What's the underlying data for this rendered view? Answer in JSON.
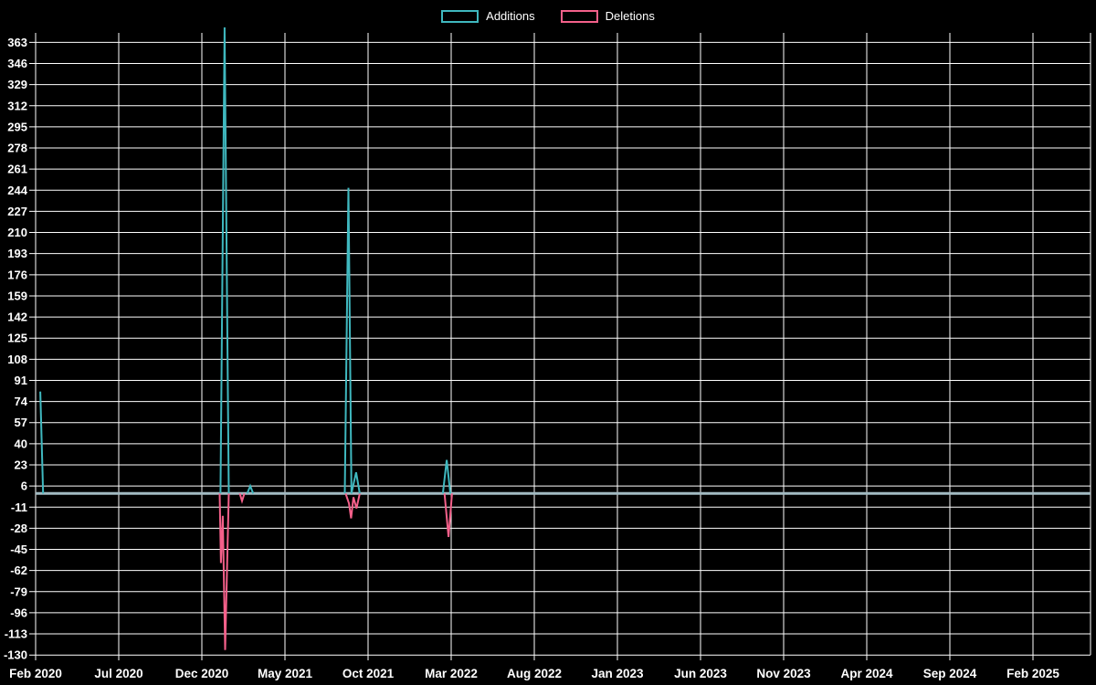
{
  "chart_data": {
    "type": "line",
    "title": "",
    "background_color": "#000000",
    "grid": true,
    "grid_color": "#ffffff",
    "zero_line_color": "#a2bac2",
    "legend_position": "top-center",
    "x_tick_labels": [
      "Feb 2020",
      "Jul 2020",
      "Dec 2020",
      "May 2021",
      "Oct 2021",
      "Mar 2022",
      "Aug 2022",
      "Jan 2023",
      "Jun 2023",
      "Nov 2023",
      "Apr 2024",
      "Sep 2024",
      "Feb 2025"
    ],
    "x_tick_interval_months": 5,
    "y_tick_labels": [
      363,
      346,
      329,
      312,
      295,
      278,
      261,
      244,
      227,
      210,
      193,
      176,
      159,
      142,
      125,
      108,
      91,
      74,
      57,
      40,
      23,
      6,
      -11,
      -28,
      -45,
      -62,
      -79,
      -96,
      -113,
      -130
    ],
    "ylim": [
      -130,
      375
    ],
    "x_unit": "months since Feb 2020",
    "series": [
      {
        "name": "Additions",
        "color": "#3fb8bf",
        "points": [
          [
            0.28,
            82
          ],
          [
            0.45,
            0
          ],
          [
            11.12,
            0
          ],
          [
            11.37,
            375
          ],
          [
            11.62,
            0
          ],
          [
            12.73,
            0
          ],
          [
            12.91,
            6
          ],
          [
            13.09,
            0
          ],
          [
            18.6,
            0
          ],
          [
            18.82,
            246
          ],
          [
            19.0,
            0
          ],
          [
            19.28,
            17
          ],
          [
            19.5,
            0
          ],
          [
            24.5,
            0
          ],
          [
            24.73,
            27
          ],
          [
            24.95,
            0
          ],
          [
            63.4,
            0
          ]
        ]
      },
      {
        "name": "Deletions",
        "color": "#f4608a",
        "points": [
          [
            0.1,
            0
          ],
          [
            11.07,
            0
          ],
          [
            11.15,
            -56
          ],
          [
            11.26,
            -18
          ],
          [
            11.4,
            -126
          ],
          [
            11.62,
            0
          ],
          [
            12.28,
            0
          ],
          [
            12.42,
            -6
          ],
          [
            12.56,
            0
          ],
          [
            18.65,
            0
          ],
          [
            18.85,
            -8
          ],
          [
            18.98,
            -20
          ],
          [
            19.12,
            -3
          ],
          [
            19.3,
            -12
          ],
          [
            19.5,
            0
          ],
          [
            24.6,
            0
          ],
          [
            24.84,
            -35
          ],
          [
            25.05,
            0
          ],
          [
            63.4,
            0
          ]
        ]
      }
    ]
  }
}
